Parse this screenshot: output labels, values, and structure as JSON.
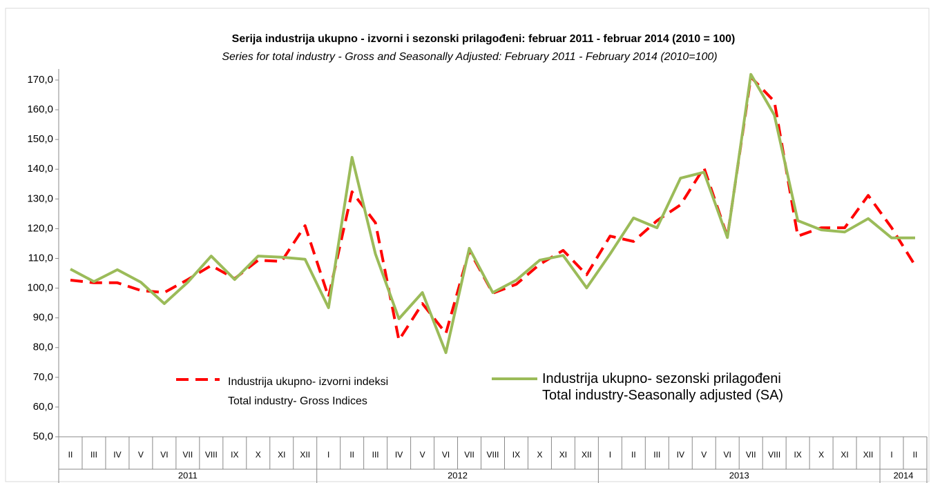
{
  "chart_data": {
    "type": "line",
    "title": "Serija industrija ukupno - izvorni i sezonski prilagođeni: februar 2011 - februar 2014 (2010 = 100)",
    "subtitle": "Series for total industry - Gross and Seasonally Adjusted: February 2011 - February 2014 (2010=100)",
    "categories": [
      "II",
      "III",
      "IV",
      "V",
      "VI",
      "VII",
      "VIII",
      "IX",
      "X",
      "XI",
      "XII",
      "I",
      "II",
      "III",
      "IV",
      "V",
      "VI",
      "VII",
      "VIII",
      "IX",
      "X",
      "XI",
      "XII",
      "I",
      "II",
      "III",
      "IV",
      "V",
      "VI",
      "VII",
      "VIII",
      "IX",
      "X",
      "XI",
      "XII",
      "I",
      "II"
    ],
    "years": [
      "2011",
      "2012",
      "2013",
      "2014"
    ],
    "series": [
      {
        "name": "Industrija ukupno- izvorni indeksi\nTotal industry- Gross Indices",
        "color": "#ff0000",
        "line_style": "dashed",
        "values": [
          102.7,
          101.8,
          101.8,
          99.2,
          98.5,
          102.9,
          107.6,
          103.2,
          109.4,
          109.0,
          121.0,
          97.0,
          132.4,
          122.0,
          82.5,
          94.8,
          84.8,
          112.7,
          98.3,
          101.3,
          108.0,
          112.7,
          104.5,
          117.5,
          115.7,
          122.7,
          128.0,
          140.5,
          117.3,
          171.0,
          162.8,
          117.5,
          120.3,
          120.3,
          131.2,
          120.3,
          107.6
        ]
      },
      {
        "name": "Industrija ukupno- sezonski prilagođeni\nTotal industry-Seasonally adjusted (SA)",
        "color": "#9bbb59",
        "line_style": "solid",
        "values": [
          106.4,
          102.2,
          106.2,
          102.0,
          94.8,
          102.0,
          110.8,
          102.9,
          110.8,
          110.4,
          109.7,
          93.4,
          144.0,
          111.5,
          89.7,
          98.5,
          78.3,
          113.4,
          98.5,
          102.7,
          109.4,
          111.0,
          100.1,
          111.5,
          123.6,
          120.3,
          137.0,
          139.0,
          117.0,
          171.9,
          158.2,
          122.7,
          119.6,
          118.9,
          123.4,
          116.9,
          116.9
        ]
      }
    ],
    "ylim": [
      50,
      170
    ],
    "yticks": [
      {
        "value": 50,
        "label": "50,0"
      },
      {
        "value": 60,
        "label": "60,0"
      },
      {
        "value": 70,
        "label": "70,0"
      },
      {
        "value": 80,
        "label": "80,0"
      },
      {
        "value": 90,
        "label": "90,0"
      },
      {
        "value": 100,
        "label": "100,0"
      },
      {
        "value": 110,
        "label": "110,0"
      },
      {
        "value": 120,
        "label": "120,0"
      },
      {
        "value": 130,
        "label": "130,0"
      },
      {
        "value": 140,
        "label": "140,0"
      },
      {
        "value": 150,
        "label": "150,0"
      },
      {
        "value": 160,
        "label": "160,0"
      },
      {
        "value": 170,
        "label": "170,0"
      }
    ],
    "grid": false
  }
}
